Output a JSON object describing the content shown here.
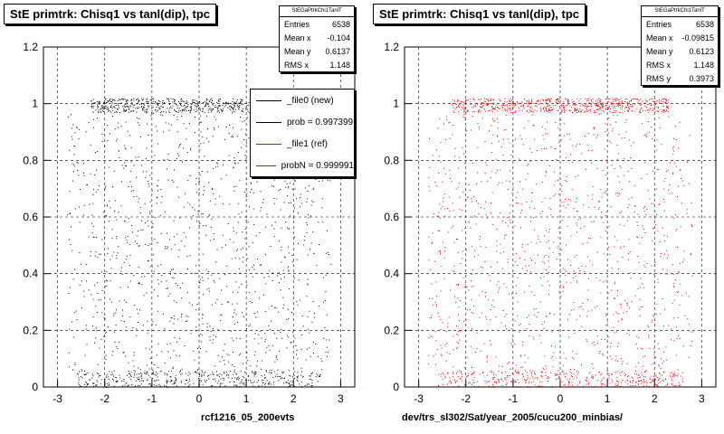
{
  "footer_text": "",
  "chart_data": [
    {
      "type": "scatter",
      "title": "StE primtrk: Chisq1 vs tanl(dip), tpc",
      "xlabel": "rcf1216_05_200evts",
      "ylabel": "",
      "xlim": [
        -3.3,
        3.3
      ],
      "ylim": [
        0,
        1.2
      ],
      "xticks": [
        "-3",
        "-2",
        "-1",
        "0",
        "1",
        "2",
        "3"
      ],
      "yticks": [
        "0",
        "0.2",
        "0.4",
        "0.6",
        "0.8",
        "1",
        "1.2"
      ],
      "grid": true,
      "stats": {
        "header": "StEGaPtrkChi1TanlT",
        "rows": [
          {
            "label": "Entries",
            "value": "6538"
          },
          {
            "label": "Mean x",
            "value": "-0.104"
          },
          {
            "label": "Mean y",
            "value": "0.6137"
          },
          {
            "label": "RMS x",
            "value": "1.148"
          }
        ]
      },
      "legend": {
        "placement": "right",
        "entries": [
          {
            "label": "_file0 (new)",
            "color": "#000000"
          },
          {
            "label": "prob = 0.997399",
            "color": "#000000"
          },
          {
            "label": "_file1 (ref)",
            "color": "#e00000"
          },
          {
            "label": "probN = 0.999991",
            "color": "#e00000"
          }
        ]
      },
      "series": [
        {
          "color": "#000000",
          "entries": 6538,
          "mean_x": -0.104,
          "mean_y": 0.6137,
          "rms_x": 1.148,
          "density_bands": [
            {
              "y_range": [
                0.97,
                1.02
              ],
              "x_range": [
                -2.3,
                2.3
              ],
              "fraction": 0.3
            },
            {
              "y_range": [
                0.0,
                0.06
              ],
              "x_range": [
                -2.6,
                2.6
              ],
              "fraction": 0.2
            },
            {
              "y_range": [
                0.06,
                0.97
              ],
              "x_range": [
                -2.8,
                2.8
              ],
              "fraction": 0.5
            }
          ]
        }
      ]
    },
    {
      "type": "scatter",
      "title": "StE primtrk: Chisq1 vs tanl(dip), tpc",
      "xlabel": "dev/trs_sl302/Sat/year_2005/cucu200_minbias/",
      "ylabel": "",
      "xlim": [
        -3.3,
        3.3
      ],
      "ylim": [
        0,
        1.2
      ],
      "xticks": [
        "-3",
        "-2",
        "-1",
        "0",
        "1",
        "2",
        "3"
      ],
      "yticks": [
        "0",
        "0.2",
        "0.4",
        "0.6",
        "0.8",
        "1",
        "1.2"
      ],
      "grid": true,
      "stats": {
        "header": "StEGaPtrkChi1TanlT",
        "rows": [
          {
            "label": "Entries",
            "value": "6538"
          },
          {
            "label": "Mean x",
            "value": "-0.09815"
          },
          {
            "label": "Mean y",
            "value": "0.6123"
          },
          {
            "label": "RMS x",
            "value": "1.148"
          },
          {
            "label": "RMS y",
            "value": "0.3973"
          }
        ]
      },
      "series": [
        {
          "color": "#e00000",
          "entries": 6538,
          "mean_x": -0.09815,
          "mean_y": 0.6123,
          "rms_x": 1.148,
          "rms_y": 0.3973,
          "density_bands": [
            {
              "y_range": [
                0.97,
                1.02
              ],
              "x_range": [
                -2.3,
                2.3
              ],
              "fraction": 0.3
            },
            {
              "y_range": [
                0.0,
                0.06
              ],
              "x_range": [
                -2.6,
                2.6
              ],
              "fraction": 0.2
            },
            {
              "y_range": [
                0.06,
                0.97
              ],
              "x_range": [
                -2.8,
                2.8
              ],
              "fraction": 0.5
            }
          ]
        }
      ]
    }
  ]
}
